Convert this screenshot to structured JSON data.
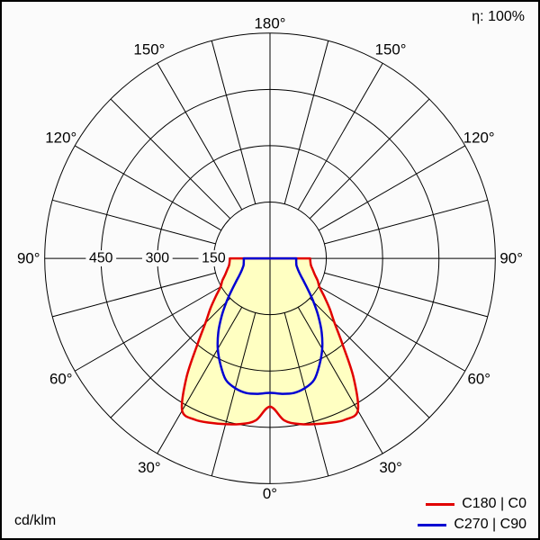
{
  "header": {
    "efficiency_label": "η: 100%"
  },
  "footer": {
    "unit_label": "cd/klm"
  },
  "colors": {
    "background": "#fbfbfb",
    "grid": "#000000",
    "text": "#000000",
    "fill_yellow": "#ffffc2",
    "red": "#e10000",
    "blue": "#0000d2"
  },
  "legend": {
    "entries": [
      {
        "label": "C180 | C0",
        "color": "#e10000"
      },
      {
        "label": "C270 | C90",
        "color": "#0000d2"
      }
    ]
  },
  "chart_data": {
    "type": "polar",
    "subtype": "luminous-intensity-distribution",
    "title": "",
    "unit": "cd/klm",
    "efficiency_percent": 100,
    "angle_labels": [
      "0°",
      "30°",
      "60°",
      "90°",
      "120°",
      "150°",
      "180°"
    ],
    "angle_label_step_deg": 30,
    "angle_labels_mirrored_both_sides": true,
    "ring_values": [
      150,
      300,
      450,
      600
    ],
    "ring_labels": [
      "150",
      "300",
      "450"
    ],
    "spoke_step_deg": 15,
    "grid_color": "#000000",
    "fill_color": "#ffffc2",
    "gamma_zero_position": "bottom",
    "series": [
      {
        "name": "C180 | C0",
        "color": "#e10000",
        "filled": true,
        "symmetric": true,
        "gamma_deg": [
          0,
          5,
          10,
          15,
          20,
          25,
          30,
          35,
          40,
          45,
          50,
          55,
          60,
          65,
          70,
          75,
          80,
          85,
          90
        ],
        "values": [
          395,
          433,
          448,
          457,
          466,
          474,
          468,
          388,
          302,
          243,
          207,
          176,
          152,
          140,
          127,
          118,
          111,
          108,
          107
        ]
      },
      {
        "name": "C270 | C90",
        "color": "#0000d2",
        "filled": false,
        "symmetric": true,
        "gamma_deg": [
          0,
          5,
          10,
          15,
          20,
          25,
          30,
          35,
          40,
          45,
          50,
          55,
          60,
          65,
          70,
          75,
          80,
          85,
          90
        ],
        "values": [
          358,
          362,
          364,
          358,
          344,
          312,
          278,
          240,
          200,
          164,
          134,
          112,
          96,
          85,
          78,
          73,
          71,
          70,
          70
        ]
      }
    ]
  }
}
